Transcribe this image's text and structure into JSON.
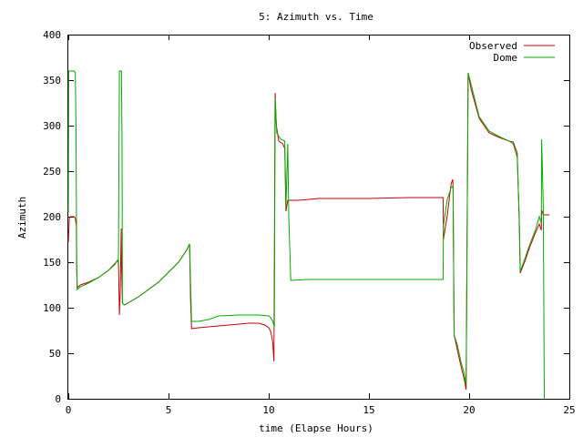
{
  "chart_data": {
    "type": "line",
    "title": "5: Azimuth vs. Time",
    "xlabel": "time (Elapse Hours)",
    "ylabel": "Azimuth",
    "xlim": [
      0,
      25
    ],
    "ylim": [
      0,
      400
    ],
    "xticks": [
      0,
      5,
      10,
      15,
      20,
      25
    ],
    "yticks": [
      0,
      50,
      100,
      150,
      200,
      250,
      300,
      350,
      400
    ],
    "grid": false,
    "legend_position": "top-right",
    "series": [
      {
        "name": "Observed",
        "color": "#cc0000",
        "points": [
          [
            0,
            172
          ],
          [
            0.05,
            198
          ],
          [
            0.1,
            200
          ],
          [
            0.3,
            200
          ],
          [
            0.35,
            198
          ],
          [
            0.4,
            190
          ],
          [
            0.42,
            140
          ],
          [
            0.45,
            122
          ],
          [
            0.6,
            125
          ],
          [
            1.0,
            128
          ],
          [
            1.5,
            133
          ],
          [
            2.0,
            141
          ],
          [
            2.3,
            148
          ],
          [
            2.5,
            153
          ],
          [
            2.55,
            92
          ],
          [
            2.6,
            125
          ],
          [
            2.62,
            160
          ],
          [
            2.64,
            187
          ],
          [
            2.66,
            145
          ],
          [
            2.7,
            105
          ],
          [
            2.8,
            103
          ],
          [
            3.5,
            112
          ],
          [
            4.5,
            128
          ],
          [
            5.5,
            150
          ],
          [
            5.9,
            163
          ],
          [
            6.05,
            170
          ],
          [
            6.1,
            108
          ],
          [
            6.15,
            77
          ],
          [
            6.5,
            78
          ],
          [
            7.5,
            80
          ],
          [
            8.5,
            82
          ],
          [
            9.0,
            83
          ],
          [
            9.5,
            83
          ],
          [
            9.8,
            81
          ],
          [
            10.0,
            78
          ],
          [
            10.1,
            74
          ],
          [
            10.2,
            62
          ],
          [
            10.26,
            41
          ],
          [
            10.32,
            336
          ],
          [
            10.38,
            300
          ],
          [
            10.5,
            283
          ],
          [
            10.7,
            280
          ],
          [
            10.8,
            275
          ],
          [
            10.86,
            206
          ],
          [
            10.95,
            218
          ],
          [
            11.2,
            218
          ],
          [
            11.5,
            218
          ],
          [
            12.0,
            219
          ],
          [
            12.5,
            220
          ],
          [
            13.0,
            220
          ],
          [
            15.0,
            220
          ],
          [
            17.0,
            221
          ],
          [
            18.7,
            221
          ],
          [
            18.72,
            175
          ],
          [
            18.9,
            200
          ],
          [
            19.1,
            236
          ],
          [
            19.18,
            241
          ],
          [
            19.2,
            228
          ],
          [
            19.25,
            70
          ],
          [
            19.4,
            55
          ],
          [
            19.6,
            35
          ],
          [
            19.75,
            22
          ],
          [
            19.85,
            10
          ],
          [
            19.95,
            358
          ],
          [
            20.1,
            340
          ],
          [
            20.5,
            308
          ],
          [
            21.0,
            292
          ],
          [
            21.5,
            287
          ],
          [
            22.0,
            283
          ],
          [
            22.2,
            282
          ],
          [
            22.4,
            270
          ],
          [
            22.5,
            195
          ],
          [
            22.55,
            138
          ],
          [
            22.8,
            152
          ],
          [
            23.0,
            165
          ],
          [
            23.3,
            182
          ],
          [
            23.5,
            192
          ],
          [
            23.6,
            185
          ],
          [
            23.62,
            207
          ],
          [
            23.7,
            202
          ],
          [
            24.0,
            202
          ]
        ]
      },
      {
        "name": "Dome",
        "color": "#00aa00",
        "points": [
          [
            0,
            205
          ],
          [
            0.02,
            360
          ],
          [
            0.3,
            360
          ],
          [
            0.35,
            358
          ],
          [
            0.38,
            300
          ],
          [
            0.42,
            150
          ],
          [
            0.44,
            120
          ],
          [
            0.6,
            123
          ],
          [
            1.0,
            127
          ],
          [
            1.5,
            133
          ],
          [
            2.0,
            141
          ],
          [
            2.3,
            147
          ],
          [
            2.45,
            152
          ],
          [
            2.5,
            148
          ],
          [
            2.55,
            360
          ],
          [
            2.65,
            360
          ],
          [
            2.68,
            280
          ],
          [
            2.7,
            105
          ],
          [
            2.8,
            103
          ],
          [
            3.5,
            112
          ],
          [
            4.5,
            128
          ],
          [
            5.5,
            150
          ],
          [
            5.9,
            163
          ],
          [
            6.05,
            170
          ],
          [
            6.15,
            85
          ],
          [
            6.5,
            85
          ],
          [
            7.0,
            87
          ],
          [
            7.5,
            91
          ],
          [
            8.5,
            92
          ],
          [
            9.0,
            92
          ],
          [
            9.5,
            92
          ],
          [
            10.0,
            91
          ],
          [
            10.1,
            89
          ],
          [
            10.2,
            85
          ],
          [
            10.28,
            79
          ],
          [
            10.32,
            330
          ],
          [
            10.4,
            292
          ],
          [
            10.6,
            285
          ],
          [
            10.8,
            283
          ],
          [
            10.86,
            210
          ],
          [
            10.95,
            280
          ],
          [
            11.0,
            200
          ],
          [
            11.1,
            130
          ],
          [
            12.0,
            131
          ],
          [
            14.0,
            131
          ],
          [
            16.0,
            131
          ],
          [
            18.7,
            131
          ],
          [
            18.72,
            190
          ],
          [
            18.9,
            218
          ],
          [
            19.1,
            232
          ],
          [
            19.2,
            233
          ],
          [
            19.25,
            70
          ],
          [
            19.4,
            60
          ],
          [
            19.6,
            40
          ],
          [
            19.75,
            28
          ],
          [
            19.85,
            15
          ],
          [
            19.95,
            358
          ],
          [
            20.1,
            345
          ],
          [
            20.5,
            310
          ],
          [
            21.0,
            294
          ],
          [
            21.5,
            288
          ],
          [
            22.0,
            283
          ],
          [
            22.2,
            280
          ],
          [
            22.4,
            265
          ],
          [
            22.5,
            200
          ],
          [
            22.55,
            140
          ],
          [
            22.8,
            155
          ],
          [
            23.0,
            168
          ],
          [
            23.3,
            185
          ],
          [
            23.5,
            200
          ],
          [
            23.6,
            193
          ],
          [
            23.62,
            285
          ],
          [
            23.7,
            210
          ],
          [
            23.75,
            0
          ]
        ]
      }
    ]
  }
}
